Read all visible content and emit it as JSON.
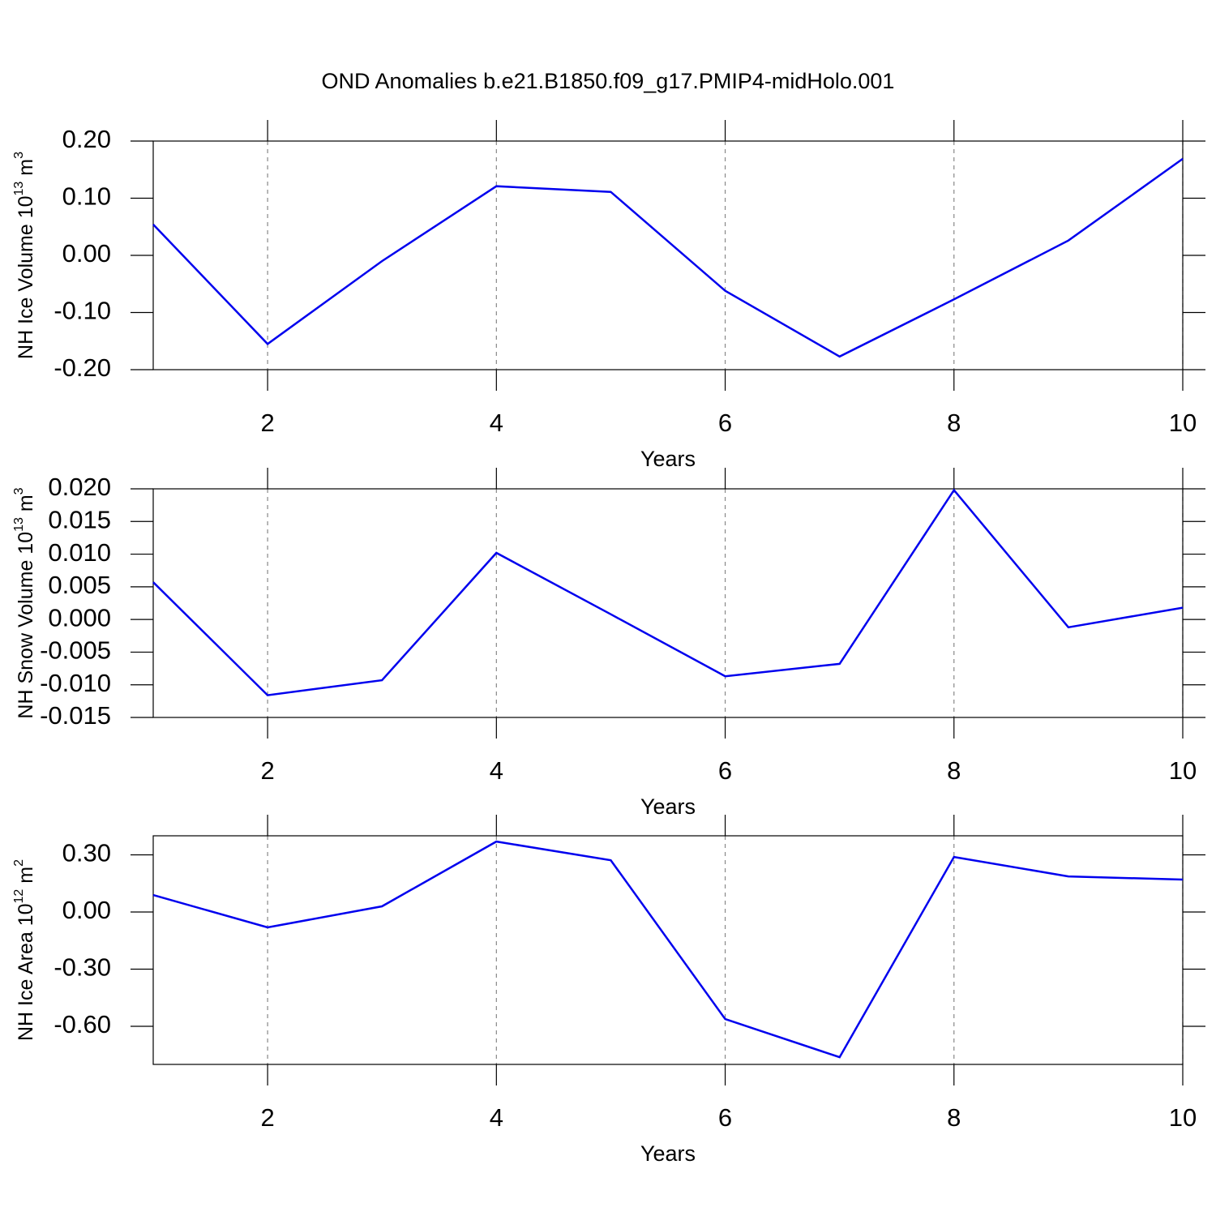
{
  "chart_data": [
    {
      "type": "line",
      "title": "OND Anomalies b.e21.B1850.f09_g17.PMIP4-midHolo.001",
      "ylabel": [
        "NH Ice Volume 10",
        "13",
        " m",
        "3"
      ],
      "xlabel": "Years",
      "x": [
        1,
        2,
        3,
        4,
        5,
        6,
        7,
        8,
        9,
        10
      ],
      "series": [
        {
          "color": "#0000ee",
          "values": [
            0.054,
            -0.155,
            -0.01,
            0.121,
            0.111,
            -0.062,
            -0.177,
            -0.077,
            0.026,
            0.169
          ]
        }
      ],
      "xlim": [
        1,
        10
      ],
      "xticks": [
        2,
        4,
        6,
        8,
        10
      ],
      "ylim": [
        -0.2,
        0.2
      ],
      "yticks": [
        {
          "value": -0.2,
          "label": "-0.20"
        },
        {
          "value": -0.1,
          "label": "-0.10"
        },
        {
          "value": 0,
          "label": "0.00"
        },
        {
          "value": 0.1,
          "label": "0.10"
        },
        {
          "value": 0.2,
          "label": "0.20"
        }
      ],
      "grid": true
    },
    {
      "type": "line",
      "ylabel": [
        "NH Snow Volume 10",
        "13",
        " m",
        "3"
      ],
      "xlabel": "Years",
      "x": [
        1,
        2,
        3,
        4,
        5,
        6,
        7,
        8,
        9,
        10
      ],
      "series": [
        {
          "color": "#0000ee",
          "values": [
            0.0057,
            -0.0116,
            -0.0093,
            0.0102,
            0.0008,
            -0.0087,
            -0.0068,
            0.0198,
            -0.0012,
            0.0018
          ]
        }
      ],
      "xlim": [
        1,
        10
      ],
      "xticks": [
        2,
        4,
        6,
        8,
        10
      ],
      "ylim": [
        -0.015,
        0.02
      ],
      "yticks": [
        {
          "value": -0.015,
          "label": "-0.015"
        },
        {
          "value": -0.01,
          "label": "-0.010"
        },
        {
          "value": -0.005,
          "label": "-0.005"
        },
        {
          "value": 0,
          "label": "0.000"
        },
        {
          "value": 0.005,
          "label": "0.005"
        },
        {
          "value": 0.01,
          "label": "0.010"
        },
        {
          "value": 0.015,
          "label": "0.015"
        },
        {
          "value": 0.02,
          "label": "0.020"
        }
      ],
      "grid": true
    },
    {
      "type": "line",
      "ylabel": [
        "NH Ice Area 10",
        "12",
        " m",
        "2"
      ],
      "xlabel": "Years",
      "x": [
        1,
        2,
        3,
        4,
        5,
        6,
        7,
        8,
        9,
        10
      ],
      "series": [
        {
          "color": "#0000ee",
          "values": [
            0.089,
            -0.081,
            0.03,
            0.37,
            0.272,
            -0.562,
            -0.762,
            0.289,
            0.187,
            0.17
          ]
        }
      ],
      "xlim": [
        1,
        10
      ],
      "xticks": [
        2,
        4,
        6,
        8,
        10
      ],
      "ylim": [
        -0.8,
        0.4
      ],
      "yticks": [
        {
          "value": -0.6,
          "label": "-0.60"
        },
        {
          "value": -0.3,
          "label": "-0.30"
        },
        {
          "value": 0,
          "label": "0.00"
        },
        {
          "value": 0.3,
          "label": "0.30"
        }
      ],
      "grid": true
    }
  ]
}
